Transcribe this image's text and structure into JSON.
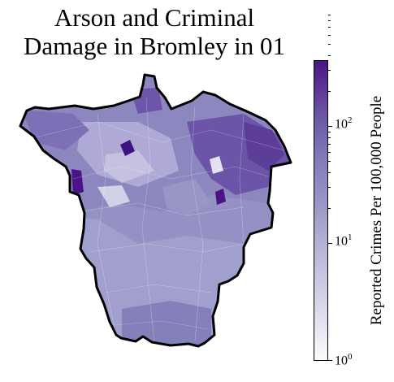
{
  "title_line1": "Arson and Criminal",
  "title_line2": "Damage in Bromley in 01",
  "colorbar": {
    "label": "Reported Crimes Per 100,000 People",
    "scale": "log",
    "range": [
      1,
      340
    ],
    "ticks": [
      {
        "base": "10",
        "exp": "2",
        "value": 100
      },
      {
        "base": "10",
        "exp": "1",
        "value": 10
      },
      {
        "base": "10",
        "exp": "0",
        "value": 1
      }
    ],
    "colors": [
      "#fcfbfd",
      "#dadaeb",
      "#bcbddc",
      "#9e9ac8",
      "#807dba",
      "#6a51a3",
      "#4a1486"
    ]
  },
  "boundary_color": "#000000"
}
